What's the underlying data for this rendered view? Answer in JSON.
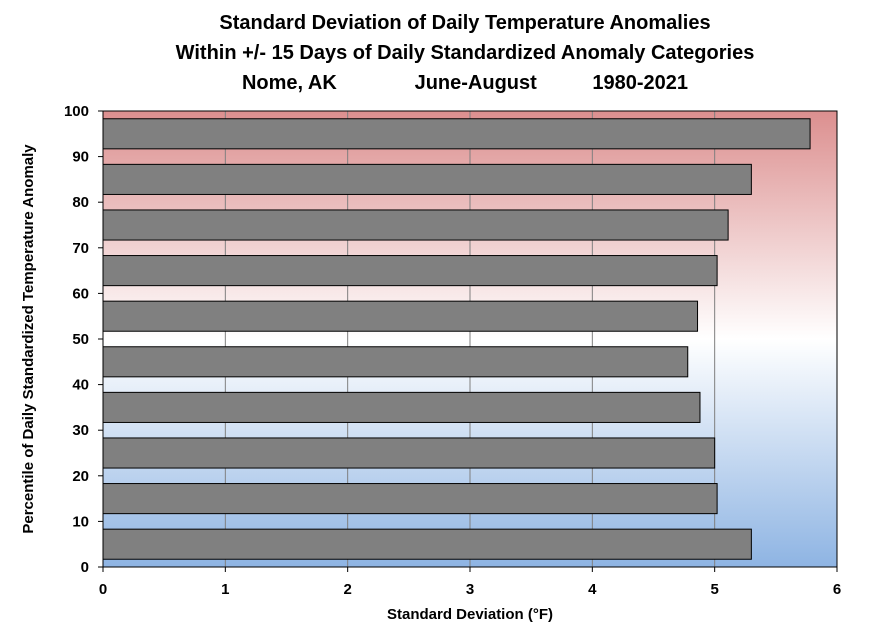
{
  "chart_data": {
    "type": "bar",
    "orientation": "horizontal",
    "title": [
      "Standard Deviation of Daily Temperature Anomalies",
      "Within +/- 15 Days of Daily Standardized Anomaly Categories",
      "Nome, AK              June-August          1980-2021"
    ],
    "xlabel": "Standard Deviation (°F)",
    "ylabel": "Percentile of Daily Standardized Temperature Anomaly",
    "xlim": [
      0,
      6
    ],
    "ylim": [
      0,
      100
    ],
    "xticks": [
      "0",
      "1",
      "2",
      "3",
      "4",
      "5",
      "6"
    ],
    "yticks": [
      "0",
      "10",
      "20",
      "30",
      "40",
      "50",
      "60",
      "70",
      "80",
      "90",
      "100"
    ],
    "categories": [
      5,
      15,
      25,
      35,
      45,
      55,
      65,
      75,
      85,
      95
    ],
    "values": [
      5.3,
      5.02,
      5.0,
      4.88,
      4.78,
      4.86,
      5.02,
      5.11,
      5.3,
      5.78
    ],
    "bar_color": "#808080",
    "background_gradient": {
      "top": "#dc8f8f",
      "middle": "#ffffff",
      "bottom": "#8eb4e3"
    },
    "grid": true,
    "legend": "none"
  }
}
